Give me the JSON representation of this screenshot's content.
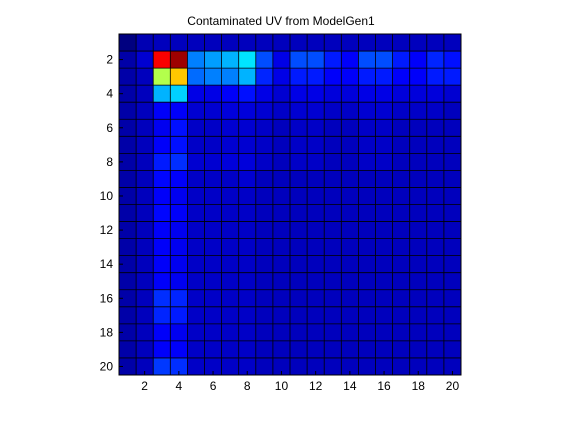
{
  "chart_data": {
    "type": "heatmap",
    "title": "Contaminated UV from ModelGen1",
    "xlabel": "",
    "ylabel": "",
    "rows": 20,
    "cols": 20,
    "x_ticks": [
      2,
      4,
      6,
      8,
      10,
      12,
      14,
      16,
      18,
      20
    ],
    "y_ticks": [
      2,
      4,
      6,
      8,
      10,
      12,
      14,
      16,
      18,
      20
    ],
    "xlim": [
      0.5,
      20.5
    ],
    "ylim": [
      0.5,
      20.5
    ],
    "y_axis_direction": "reversed",
    "grid": true,
    "colormap": "jet",
    "color_range": [
      0,
      1
    ],
    "values": [
      [
        0.0,
        0.05,
        0.06,
        0.06,
        0.06,
        0.06,
        0.06,
        0.06,
        0.06,
        0.06,
        0.06,
        0.06,
        0.06,
        0.06,
        0.06,
        0.06,
        0.06,
        0.06,
        0.06,
        0.06
      ],
      [
        0.04,
        0.08,
        0.88,
        0.97,
        0.25,
        0.28,
        0.3,
        0.35,
        0.2,
        0.1,
        0.2,
        0.2,
        0.15,
        0.12,
        0.2,
        0.2,
        0.15,
        0.12,
        0.16,
        0.14
      ],
      [
        0.04,
        0.06,
        0.55,
        0.68,
        0.23,
        0.25,
        0.25,
        0.3,
        0.16,
        0.1,
        0.15,
        0.15,
        0.12,
        0.12,
        0.15,
        0.15,
        0.12,
        0.12,
        0.15,
        0.15
      ],
      [
        0.04,
        0.06,
        0.3,
        0.33,
        0.1,
        0.1,
        0.12,
        0.14,
        0.1,
        0.08,
        0.1,
        0.1,
        0.09,
        0.09,
        0.1,
        0.1,
        0.09,
        0.09,
        0.09,
        0.08
      ],
      [
        0.04,
        0.06,
        0.12,
        0.12,
        0.08,
        0.08,
        0.09,
        0.09,
        0.08,
        0.07,
        0.08,
        0.08,
        0.07,
        0.07,
        0.08,
        0.08,
        0.07,
        0.07,
        0.07,
        0.06
      ],
      [
        0.04,
        0.06,
        0.11,
        0.14,
        0.07,
        0.07,
        0.08,
        0.08,
        0.07,
        0.06,
        0.07,
        0.07,
        0.06,
        0.06,
        0.07,
        0.07,
        0.06,
        0.06,
        0.06,
        0.06
      ],
      [
        0.04,
        0.06,
        0.12,
        0.14,
        0.07,
        0.07,
        0.08,
        0.08,
        0.07,
        0.06,
        0.07,
        0.07,
        0.06,
        0.06,
        0.07,
        0.07,
        0.06,
        0.06,
        0.06,
        0.06
      ],
      [
        0.04,
        0.06,
        0.15,
        0.17,
        0.08,
        0.08,
        0.09,
        0.09,
        0.07,
        0.06,
        0.07,
        0.07,
        0.06,
        0.06,
        0.07,
        0.07,
        0.06,
        0.06,
        0.06,
        0.06
      ],
      [
        0.04,
        0.06,
        0.13,
        0.12,
        0.07,
        0.07,
        0.07,
        0.08,
        0.06,
        0.06,
        0.06,
        0.06,
        0.06,
        0.06,
        0.06,
        0.06,
        0.06,
        0.06,
        0.06,
        0.06
      ],
      [
        0.04,
        0.06,
        0.12,
        0.11,
        0.07,
        0.07,
        0.07,
        0.07,
        0.06,
        0.06,
        0.06,
        0.06,
        0.06,
        0.06,
        0.06,
        0.06,
        0.06,
        0.06,
        0.06,
        0.06
      ],
      [
        0.04,
        0.06,
        0.13,
        0.12,
        0.07,
        0.07,
        0.07,
        0.07,
        0.06,
        0.06,
        0.06,
        0.06,
        0.06,
        0.06,
        0.06,
        0.06,
        0.06,
        0.06,
        0.06,
        0.06
      ],
      [
        0.04,
        0.06,
        0.12,
        0.11,
        0.07,
        0.07,
        0.07,
        0.07,
        0.06,
        0.06,
        0.06,
        0.06,
        0.06,
        0.06,
        0.06,
        0.06,
        0.06,
        0.06,
        0.06,
        0.06
      ],
      [
        0.04,
        0.06,
        0.12,
        0.11,
        0.07,
        0.07,
        0.07,
        0.07,
        0.06,
        0.06,
        0.06,
        0.06,
        0.06,
        0.06,
        0.06,
        0.06,
        0.06,
        0.06,
        0.06,
        0.06
      ],
      [
        0.04,
        0.06,
        0.12,
        0.11,
        0.07,
        0.07,
        0.07,
        0.07,
        0.06,
        0.06,
        0.06,
        0.06,
        0.06,
        0.06,
        0.06,
        0.06,
        0.06,
        0.06,
        0.06,
        0.06
      ],
      [
        0.04,
        0.06,
        0.12,
        0.11,
        0.07,
        0.07,
        0.07,
        0.07,
        0.06,
        0.06,
        0.06,
        0.06,
        0.06,
        0.06,
        0.06,
        0.06,
        0.06,
        0.06,
        0.06,
        0.06
      ],
      [
        0.04,
        0.06,
        0.17,
        0.16,
        0.07,
        0.07,
        0.07,
        0.07,
        0.06,
        0.06,
        0.06,
        0.06,
        0.06,
        0.06,
        0.06,
        0.06,
        0.06,
        0.06,
        0.06,
        0.06
      ],
      [
        0.04,
        0.06,
        0.16,
        0.15,
        0.07,
        0.07,
        0.07,
        0.07,
        0.06,
        0.06,
        0.06,
        0.06,
        0.06,
        0.06,
        0.06,
        0.06,
        0.06,
        0.06,
        0.06,
        0.06
      ],
      [
        0.04,
        0.06,
        0.12,
        0.11,
        0.07,
        0.07,
        0.07,
        0.07,
        0.06,
        0.06,
        0.06,
        0.06,
        0.06,
        0.06,
        0.06,
        0.06,
        0.06,
        0.06,
        0.06,
        0.06
      ],
      [
        0.04,
        0.06,
        0.12,
        0.12,
        0.07,
        0.07,
        0.07,
        0.07,
        0.06,
        0.06,
        0.06,
        0.06,
        0.06,
        0.06,
        0.06,
        0.06,
        0.06,
        0.06,
        0.06,
        0.06
      ],
      [
        0.04,
        0.06,
        0.18,
        0.17,
        0.07,
        0.07,
        0.07,
        0.07,
        0.06,
        0.06,
        0.06,
        0.06,
        0.06,
        0.06,
        0.06,
        0.06,
        0.06,
        0.06,
        0.06,
        0.06
      ]
    ]
  }
}
